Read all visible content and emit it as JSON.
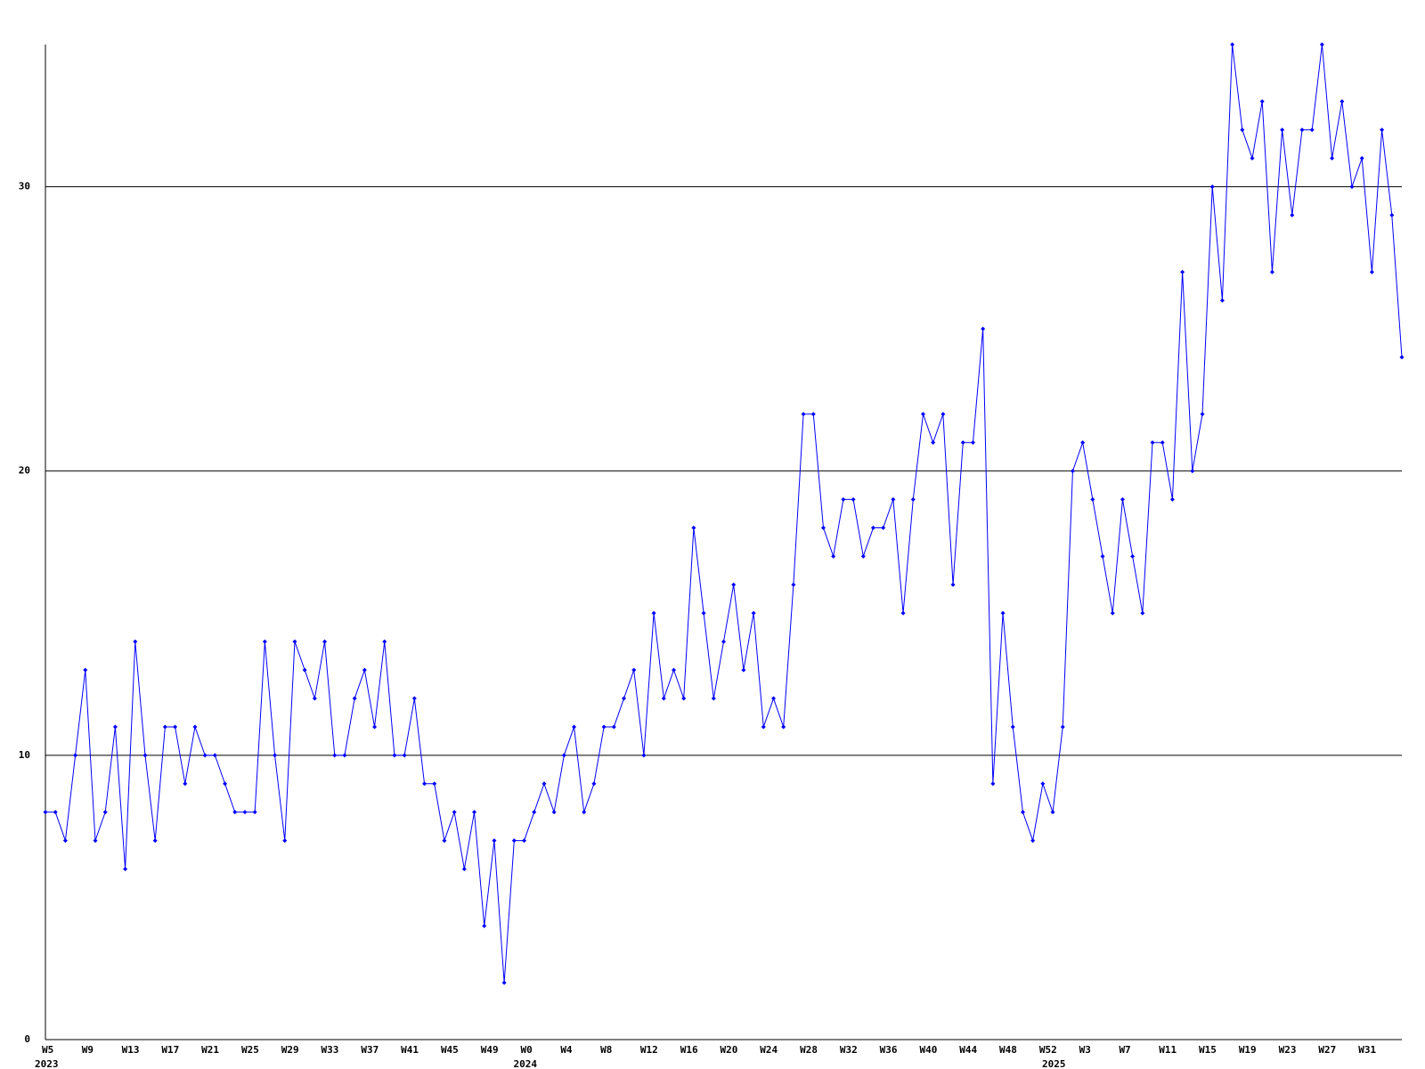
{
  "chart_data": {
    "type": "line",
    "color": "#0000ff",
    "grid": true,
    "ylim": [
      0,
      35
    ],
    "yticks": [
      0,
      10,
      20,
      30
    ],
    "categories": [
      "W5",
      null,
      null,
      null,
      "W9",
      null,
      null,
      null,
      "W13",
      null,
      null,
      null,
      "W17",
      null,
      null,
      null,
      "W21",
      null,
      null,
      null,
      "W25",
      null,
      null,
      null,
      "W29",
      null,
      null,
      null,
      "W33",
      null,
      null,
      null,
      "W37",
      null,
      null,
      null,
      "W41",
      null,
      null,
      null,
      "W45",
      null,
      null,
      null,
      "W49",
      null,
      null,
      null,
      "W0",
      null,
      null,
      null,
      "W4",
      null,
      null,
      null,
      "W8",
      null,
      null,
      null,
      "W12",
      null,
      null,
      null,
      "W16",
      null,
      null,
      null,
      "W20",
      null,
      null,
      null,
      "W24",
      null,
      null,
      null,
      "W28",
      null,
      null,
      null,
      "W32",
      null,
      null,
      null,
      "W36",
      null,
      null,
      null,
      "W40",
      null,
      null,
      null,
      "W44",
      null,
      null,
      null,
      "W48",
      null,
      null,
      null,
      "W52",
      null,
      null,
      null,
      "W3",
      null,
      null,
      null,
      "W7",
      null,
      null,
      null,
      "W11",
      null,
      null,
      null,
      "W15",
      null,
      null,
      null,
      "W19",
      null,
      null,
      null,
      "W23",
      null,
      null,
      null,
      "W27",
      null,
      null,
      null,
      "W31",
      null,
      null,
      null,
      null
    ],
    "category_groups": [
      "2023",
      null,
      null,
      null,
      null,
      null,
      null,
      null,
      null,
      null,
      null,
      null,
      null,
      null,
      null,
      null,
      null,
      null,
      null,
      null,
      null,
      null,
      null,
      null,
      null,
      null,
      null,
      null,
      null,
      null,
      null,
      null,
      null,
      null,
      null,
      null,
      null,
      null,
      null,
      null,
      null,
      null,
      null,
      null,
      null,
      null,
      null,
      null,
      "2024",
      null,
      null,
      null,
      null,
      null,
      null,
      null,
      null,
      null,
      null,
      null,
      null,
      null,
      null,
      null,
      null,
      null,
      null,
      null,
      null,
      null,
      null,
      null,
      null,
      null,
      null,
      null,
      null,
      null,
      null,
      null,
      null,
      null,
      null,
      null,
      null,
      null,
      null,
      null,
      null,
      null,
      null,
      null,
      null,
      null,
      null,
      null,
      null,
      null,
      null,
      null,
      null,
      "2025",
      null,
      null,
      null,
      null,
      null,
      null,
      null,
      null,
      null,
      null,
      null,
      null,
      null,
      null,
      null,
      null,
      null,
      null,
      null,
      null,
      null,
      null,
      null,
      null,
      null,
      null,
      null,
      null,
      null,
      null,
      null,
      null,
      null,
      null,
      null
    ],
    "values": [
      8,
      8,
      7,
      10,
      13,
      7,
      8,
      11,
      6,
      14,
      10,
      7,
      11,
      11,
      9,
      11,
      10,
      10,
      9,
      8,
      8,
      8,
      14,
      10,
      7,
      14,
      13,
      12,
      14,
      10,
      10,
      12,
      13,
      11,
      14,
      10,
      10,
      12,
      9,
      9,
      7,
      8,
      6,
      8,
      4,
      7,
      2,
      7,
      7,
      8,
      9,
      8,
      10,
      11,
      8,
      9,
      11,
      11,
      12,
      13,
      10,
      15,
      12,
      13,
      12,
      18,
      15,
      12,
      14,
      16,
      13,
      15,
      11,
      12,
      11,
      16,
      22,
      22,
      18,
      17,
      19,
      19,
      17,
      18,
      18,
      19,
      15,
      19,
      22,
      21,
      22,
      16,
      21,
      21,
      25,
      9,
      15,
      11,
      8,
      7,
      9,
      8,
      11,
      20,
      21,
      19,
      17,
      15,
      19,
      17,
      15,
      21,
      21,
      19,
      27,
      20,
      22,
      30,
      26,
      35,
      32,
      31,
      33,
      27,
      32,
      29,
      32,
      32,
      35,
      31,
      33,
      30,
      31,
      27,
      32,
      29,
      24
    ]
  }
}
